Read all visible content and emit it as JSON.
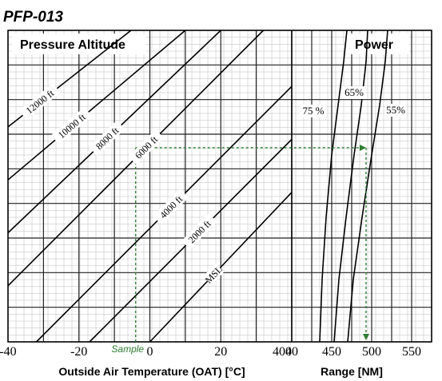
{
  "figure_id": "PFP-013",
  "chart_data": [
    {
      "type": "line",
      "title": "Pressure Altitude",
      "xlabel": "Outside Air Temperature (OAT) [°C]",
      "x_ticks": [
        "-40",
        "-20",
        "0",
        "20",
        "40"
      ],
      "xlim": [
        -40,
        40
      ],
      "grid": true,
      "series": [
        {
          "name": "12000 ft",
          "x": [
            -40,
            -5.3
          ],
          "y": [
            0.69,
            1.0
          ]
        },
        {
          "name": "10000 ft",
          "x": [
            -40,
            10
          ],
          "y": [
            0.52,
            1.0
          ]
        },
        {
          "name": "8000 ft",
          "x": [
            -40,
            20
          ],
          "y": [
            0.35,
            1.0
          ]
        },
        {
          "name": "6000 ft",
          "x": [
            -40,
            32
          ],
          "y": [
            0.18,
            1.0
          ]
        },
        {
          "name": "4000 ft",
          "x": [
            -32,
            40
          ],
          "y": [
            0.0,
            0.82
          ]
        },
        {
          "name": "2000 ft",
          "x": [
            -17,
            40
          ],
          "y": [
            0.0,
            0.65
          ]
        },
        {
          "name": "MSL",
          "x": [
            0,
            40
          ],
          "y": [
            0.0,
            0.48
          ]
        }
      ],
      "sample": {
        "label": "Sample",
        "oat": -4,
        "altitude_ft": 8000
      }
    },
    {
      "type": "line",
      "title": "Power",
      "xlabel": "Range [NM]",
      "x_ticks": [
        "400",
        "450",
        "500",
        "550"
      ],
      "xlim": [
        400,
        575
      ],
      "grid": true,
      "series": [
        {
          "name": "75 %",
          "x": [
            435,
            438,
            443,
            450,
            458,
            465,
            469
          ],
          "y": [
            0.0,
            0.2,
            0.4,
            0.6,
            0.76,
            0.9,
            1.0
          ]
        },
        {
          "name": "65%",
          "x": [
            453,
            459,
            468,
            478,
            487,
            493,
            495
          ],
          "y": [
            0.0,
            0.2,
            0.4,
            0.6,
            0.76,
            0.9,
            1.0
          ]
        },
        {
          "name": "55%",
          "x": [
            470,
            477,
            488,
            500,
            510,
            517,
            520
          ],
          "y": [
            0.0,
            0.2,
            0.4,
            0.6,
            0.76,
            0.9,
            1.0
          ]
        }
      ],
      "sample": {
        "range_nm": 493
      }
    }
  ]
}
